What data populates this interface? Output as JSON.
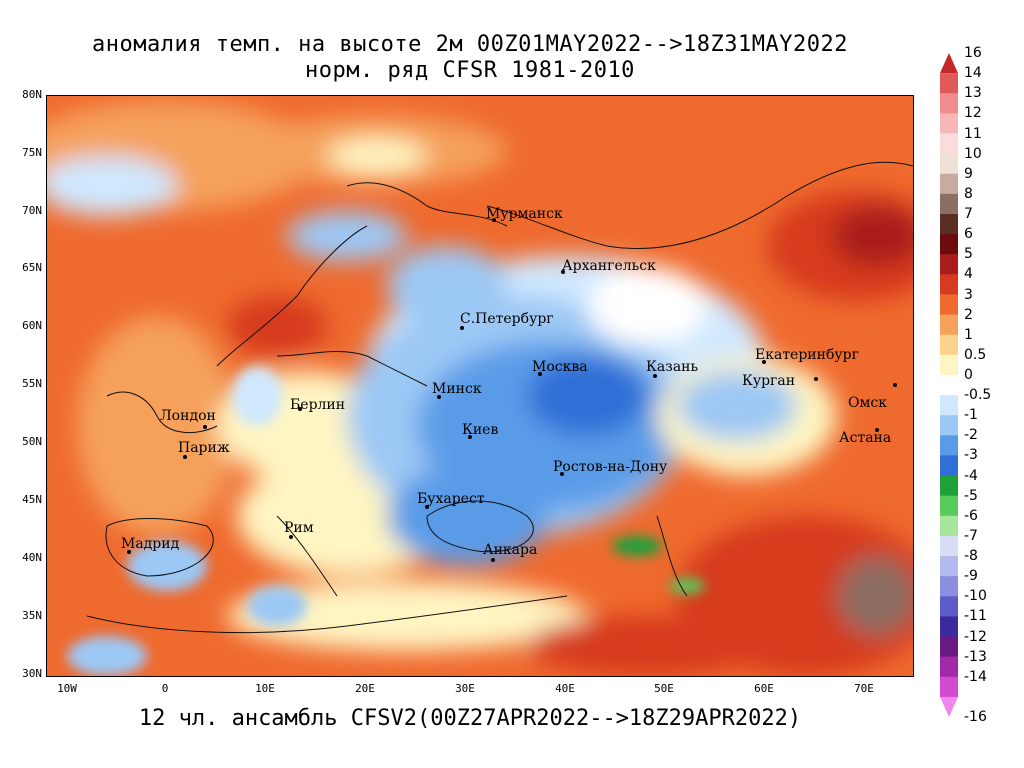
{
  "title_line1": "аномалия темп. на высоте 2м 00Z01MAY2022-->18Z31MAY2022",
  "title_line2": "норм. ряд CFSR 1981-2010",
  "footer": "12 чл. ансамбль CFSV2(00Z27APR2022-->18Z29APR2022)",
  "lat_labels": [
    "80N",
    "75N",
    "70N",
    "65N",
    "60N",
    "55N",
    "50N",
    "45N",
    "40N",
    "35N",
    "30N"
  ],
  "lon_labels": [
    "10W",
    "0",
    "10E",
    "20E",
    "30E",
    "40E",
    "50E",
    "60E",
    "70E"
  ],
  "cities": {
    "murmansk": "Мурманск",
    "arkhangelsk": "Архангельск",
    "st_petersburg": "С.Петербург",
    "moscow": "Москва",
    "kazan": "Казань",
    "yekaterinburg": "Екатеринбург",
    "kurgan": "Курган",
    "omsk": "Омск",
    "astana": "Астана",
    "minsk": "Минск",
    "berlin": "Берлин",
    "london": "Лондон",
    "paris": "Париж",
    "kiev": "Киев",
    "rostov": "Ростов-на-Дону",
    "bucharest": "Бухарест",
    "rome": "Рим",
    "madrid": "Мадрид",
    "ankara": "Анкара"
  },
  "legend": {
    "labels": [
      "16",
      "14",
      "13",
      "12",
      "11",
      "10",
      "9",
      "8",
      "7",
      "6",
      "5",
      "4",
      "3",
      "2",
      "1",
      "0.5",
      "0",
      "-0.5",
      "-1",
      "-2",
      "-3",
      "-4",
      "-5",
      "-6",
      "-7",
      "-8",
      "-9",
      "-10",
      "-11",
      "-12",
      "-13",
      "-14",
      "-16"
    ],
    "colors": [
      "#c62828",
      "#e05a5a",
      "#f08c8c",
      "#f7b7b7",
      "#fadcdc",
      "#efe0d8",
      "#c9aaa0",
      "#8d6e63",
      "#5a2e22",
      "#6b0b0b",
      "#a81d1d",
      "#d63a1f",
      "#ef6a2e",
      "#f5a15c",
      "#fbd38d",
      "#fff5c2",
      "#ffffff",
      "#cfe8ff",
      "#9cc8f5",
      "#5a9be8",
      "#2f6fd6",
      "#1fa13a",
      "#58cc5a",
      "#a6e59a",
      "#d8dcf5",
      "#b4b9ee",
      "#8c8ee0",
      "#5d5cc8",
      "#3a2aa0",
      "#6a1a80",
      "#a22aa8",
      "#d24ad0",
      "#ee88ee"
    ]
  }
}
